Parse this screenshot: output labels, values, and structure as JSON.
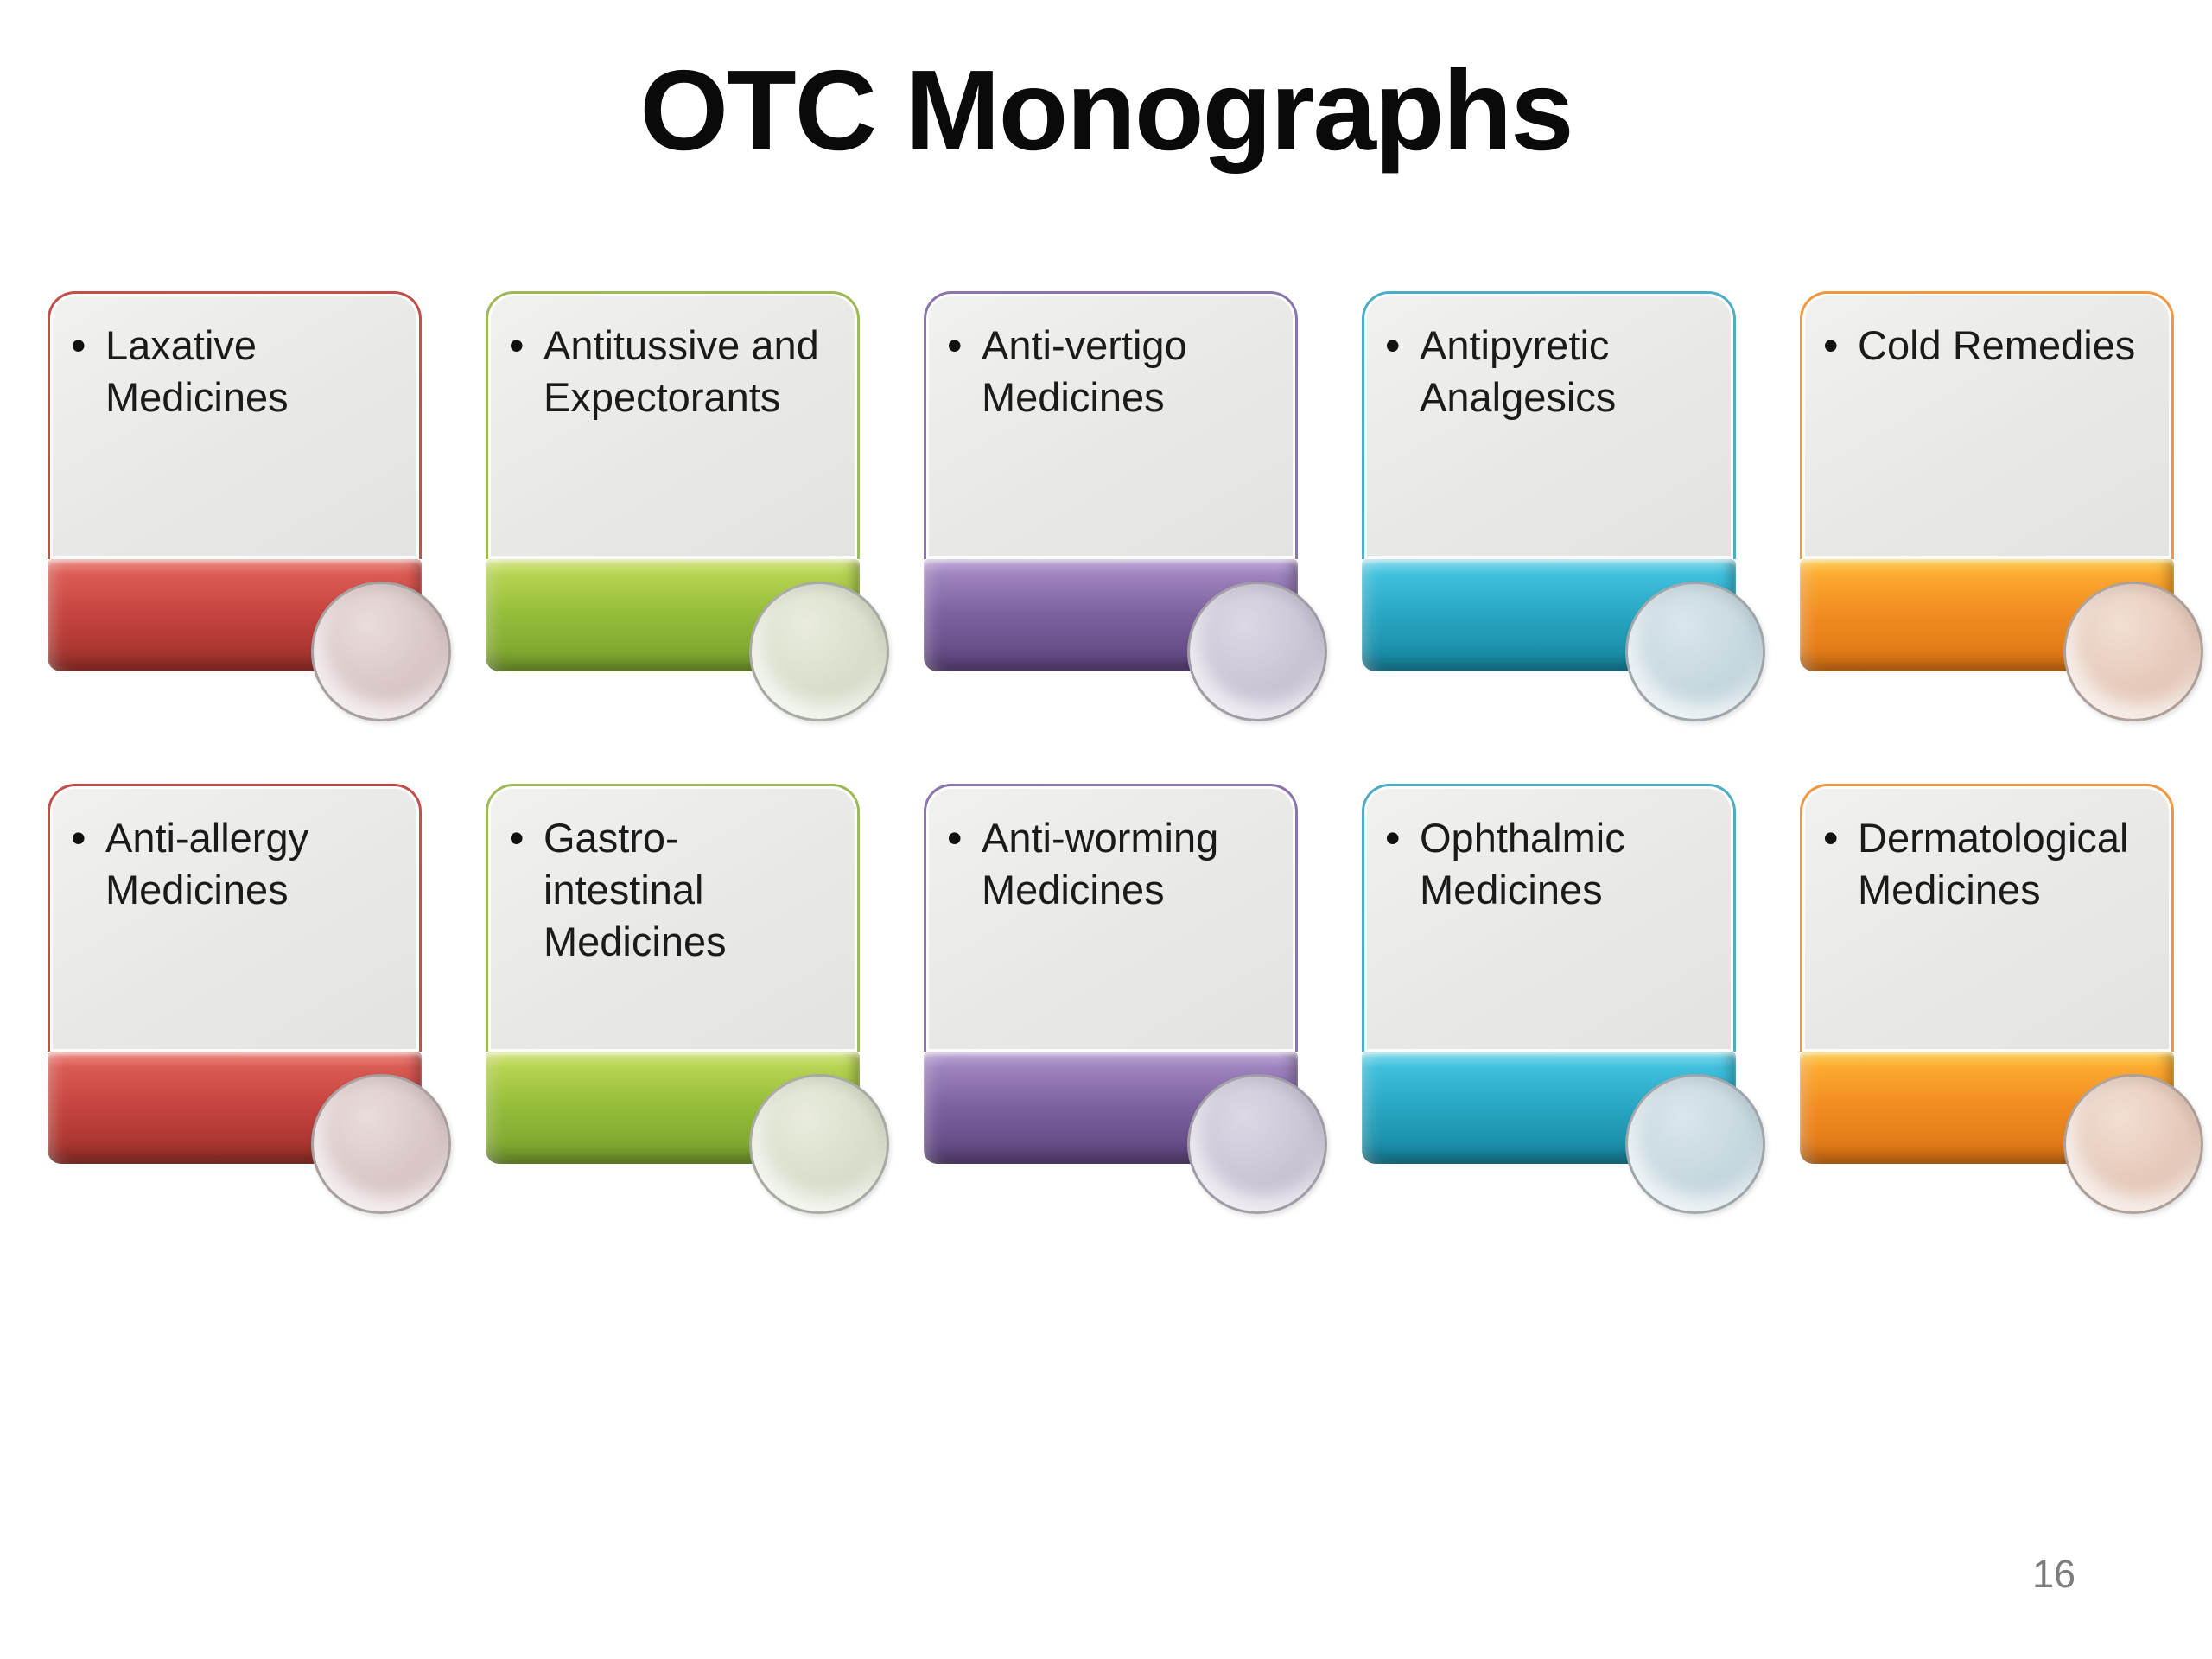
{
  "title": "OTC Monographs",
  "page_number": "16",
  "bullet_char": "•",
  "cards": [
    {
      "label": "Laxative\nMedicines",
      "accent": "#c1504c",
      "bar_hi": "#f0938c",
      "bar_top": "#da5b53",
      "bar_mid": "#c64440",
      "bar_lo": "#9c2f29",
      "circle": "#d9c6c6",
      "circle_light": "#eadcdc"
    },
    {
      "label": "Antitussive and\nExpectorants",
      "accent": "#9cba57",
      "bar_hi": "#dcea8e",
      "bar_top": "#b6d351",
      "bar_mid": "#95bd3a",
      "bar_lo": "#78a02d",
      "circle": "#d8decb",
      "circle_light": "#e9ecdd"
    },
    {
      "label": "Anti-vertigo\nMedicines",
      "accent": "#8a76ad",
      "bar_hi": "#c6b1de",
      "bar_top": "#9e83be",
      "bar_mid": "#7d62a0",
      "bar_lo": "#5d437c",
      "circle": "#c9c3d4",
      "circle_light": "#ddd8e5"
    },
    {
      "label": "Antipyretic\nAnalgesics",
      "accent": "#4dadc7",
      "bar_hi": "#8fdff0",
      "bar_top": "#3fc0dc",
      "bar_mid": "#29a7c4",
      "bar_lo": "#15859f",
      "circle": "#c5d7de",
      "circle_light": "#dae6eb"
    },
    {
      "label": "Cold Remedies",
      "accent": "#f1973f",
      "bar_hi": "#ffd45c",
      "bar_top": "#fcaa30",
      "bar_mid": "#f18c21",
      "bar_lo": "#dc7413",
      "circle": "#e5c9b9",
      "circle_light": "#f2ded3"
    },
    {
      "label": "Anti-allergy\nMedicines",
      "accent": "#c1504c",
      "bar_hi": "#f0938c",
      "bar_top": "#da5b53",
      "bar_mid": "#c64440",
      "bar_lo": "#9c2f29",
      "circle": "#d9c6c6",
      "circle_light": "#eadcdc"
    },
    {
      "label": "Gastro-\nintestinal\nMedicines",
      "accent": "#9cba57",
      "bar_hi": "#dcea8e",
      "bar_top": "#b6d351",
      "bar_mid": "#95bd3a",
      "bar_lo": "#78a02d",
      "circle": "#d8decb",
      "circle_light": "#e9ecdd"
    },
    {
      "label": "Anti-worming\nMedicines",
      "accent": "#8a76ad",
      "bar_hi": "#c6b1de",
      "bar_top": "#9e83be",
      "bar_mid": "#7d62a0",
      "bar_lo": "#5d437c",
      "circle": "#c9c3d4",
      "circle_light": "#ddd8e5"
    },
    {
      "label": "Ophthalmic\nMedicines",
      "accent": "#4dadc7",
      "bar_hi": "#8fdff0",
      "bar_top": "#3fc0dc",
      "bar_mid": "#29a7c4",
      "bar_lo": "#15859f",
      "circle": "#c5d7de",
      "circle_light": "#dae6eb"
    },
    {
      "label": "Dermatological\nMedicines",
      "accent": "#f1973f",
      "bar_hi": "#ffd45c",
      "bar_top": "#fcaa30",
      "bar_mid": "#f18c21",
      "bar_lo": "#dc7413",
      "circle": "#e5c9b9",
      "circle_light": "#f2ded3"
    }
  ]
}
